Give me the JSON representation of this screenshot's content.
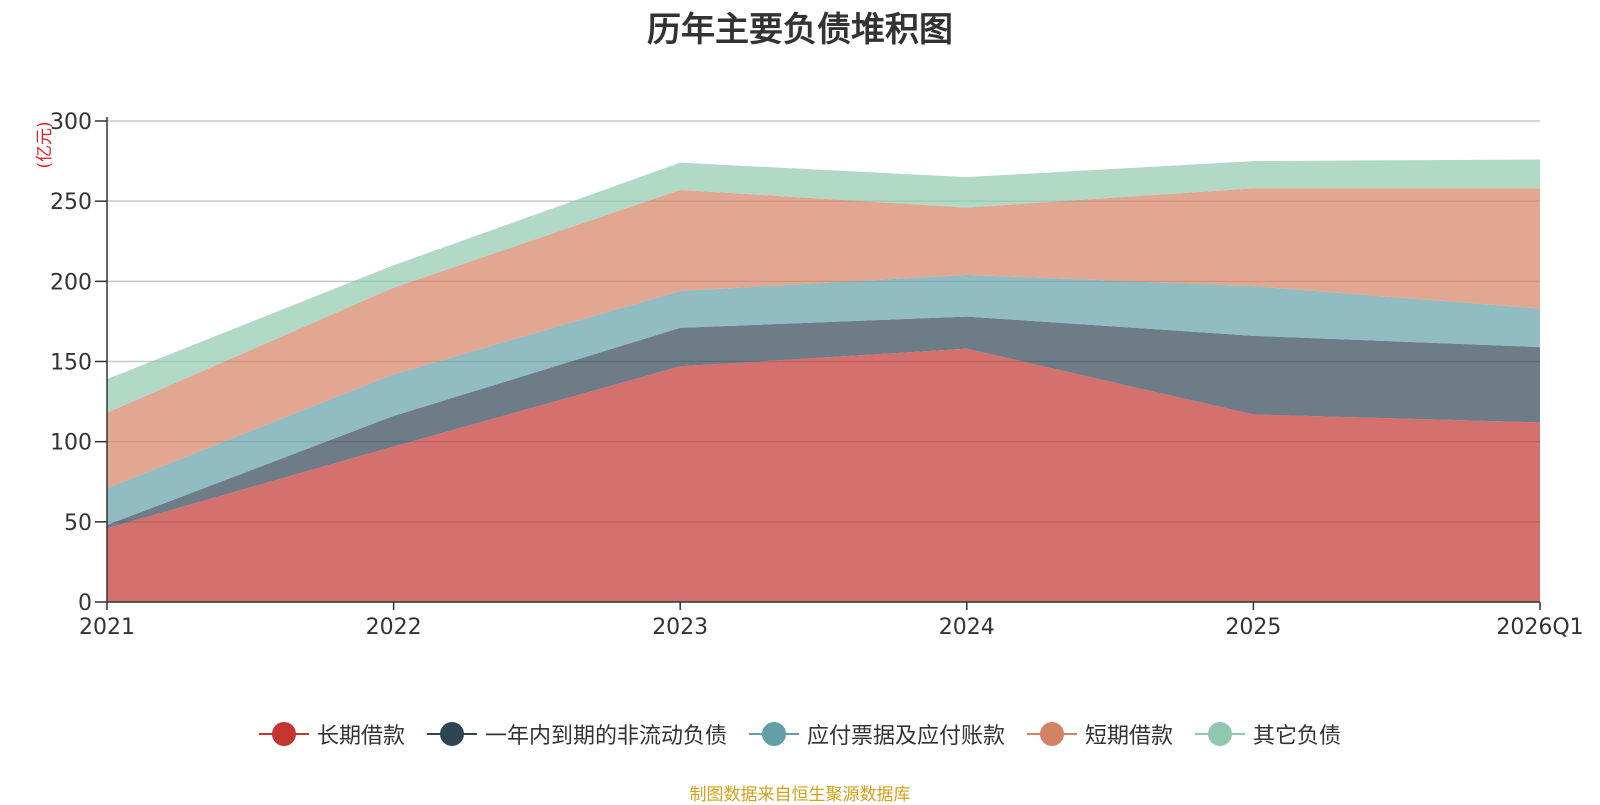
{
  "chart_data": {
    "type": "area",
    "title": "历年主要负债堆积图",
    "ylabel": "亿元",
    "ylim": [
      0,
      300
    ],
    "yticks": [
      0,
      50,
      100,
      150,
      200,
      250,
      300
    ],
    "grid": true,
    "stacked": true,
    "categories": [
      "2021",
      "2022",
      "2023",
      "2024",
      "2025",
      "2026Q1"
    ],
    "series": [
      {
        "name": "长期借款",
        "color": "#c23531",
        "values": [
          46,
          97,
          147,
          158,
          117,
          112
        ]
      },
      {
        "name": "一年内到期的非流动负债",
        "color": "#2f4554",
        "values": [
          2,
          19,
          24,
          20,
          49,
          47
        ]
      },
      {
        "name": "应付票据及应付账款",
        "color": "#61a0a8",
        "values": [
          23,
          26,
          23,
          26,
          31,
          24
        ]
      },
      {
        "name": "短期借款",
        "color": "#d48265",
        "values": [
          47,
          54,
          63,
          42,
          61,
          75
        ]
      },
      {
        "name": "其它负债",
        "color": "#91c7ae",
        "values": [
          21,
          14,
          17,
          19,
          17,
          18
        ]
      }
    ],
    "legend_position": "bottom"
  },
  "source_note": "制图数据来自恒生聚源数据库"
}
